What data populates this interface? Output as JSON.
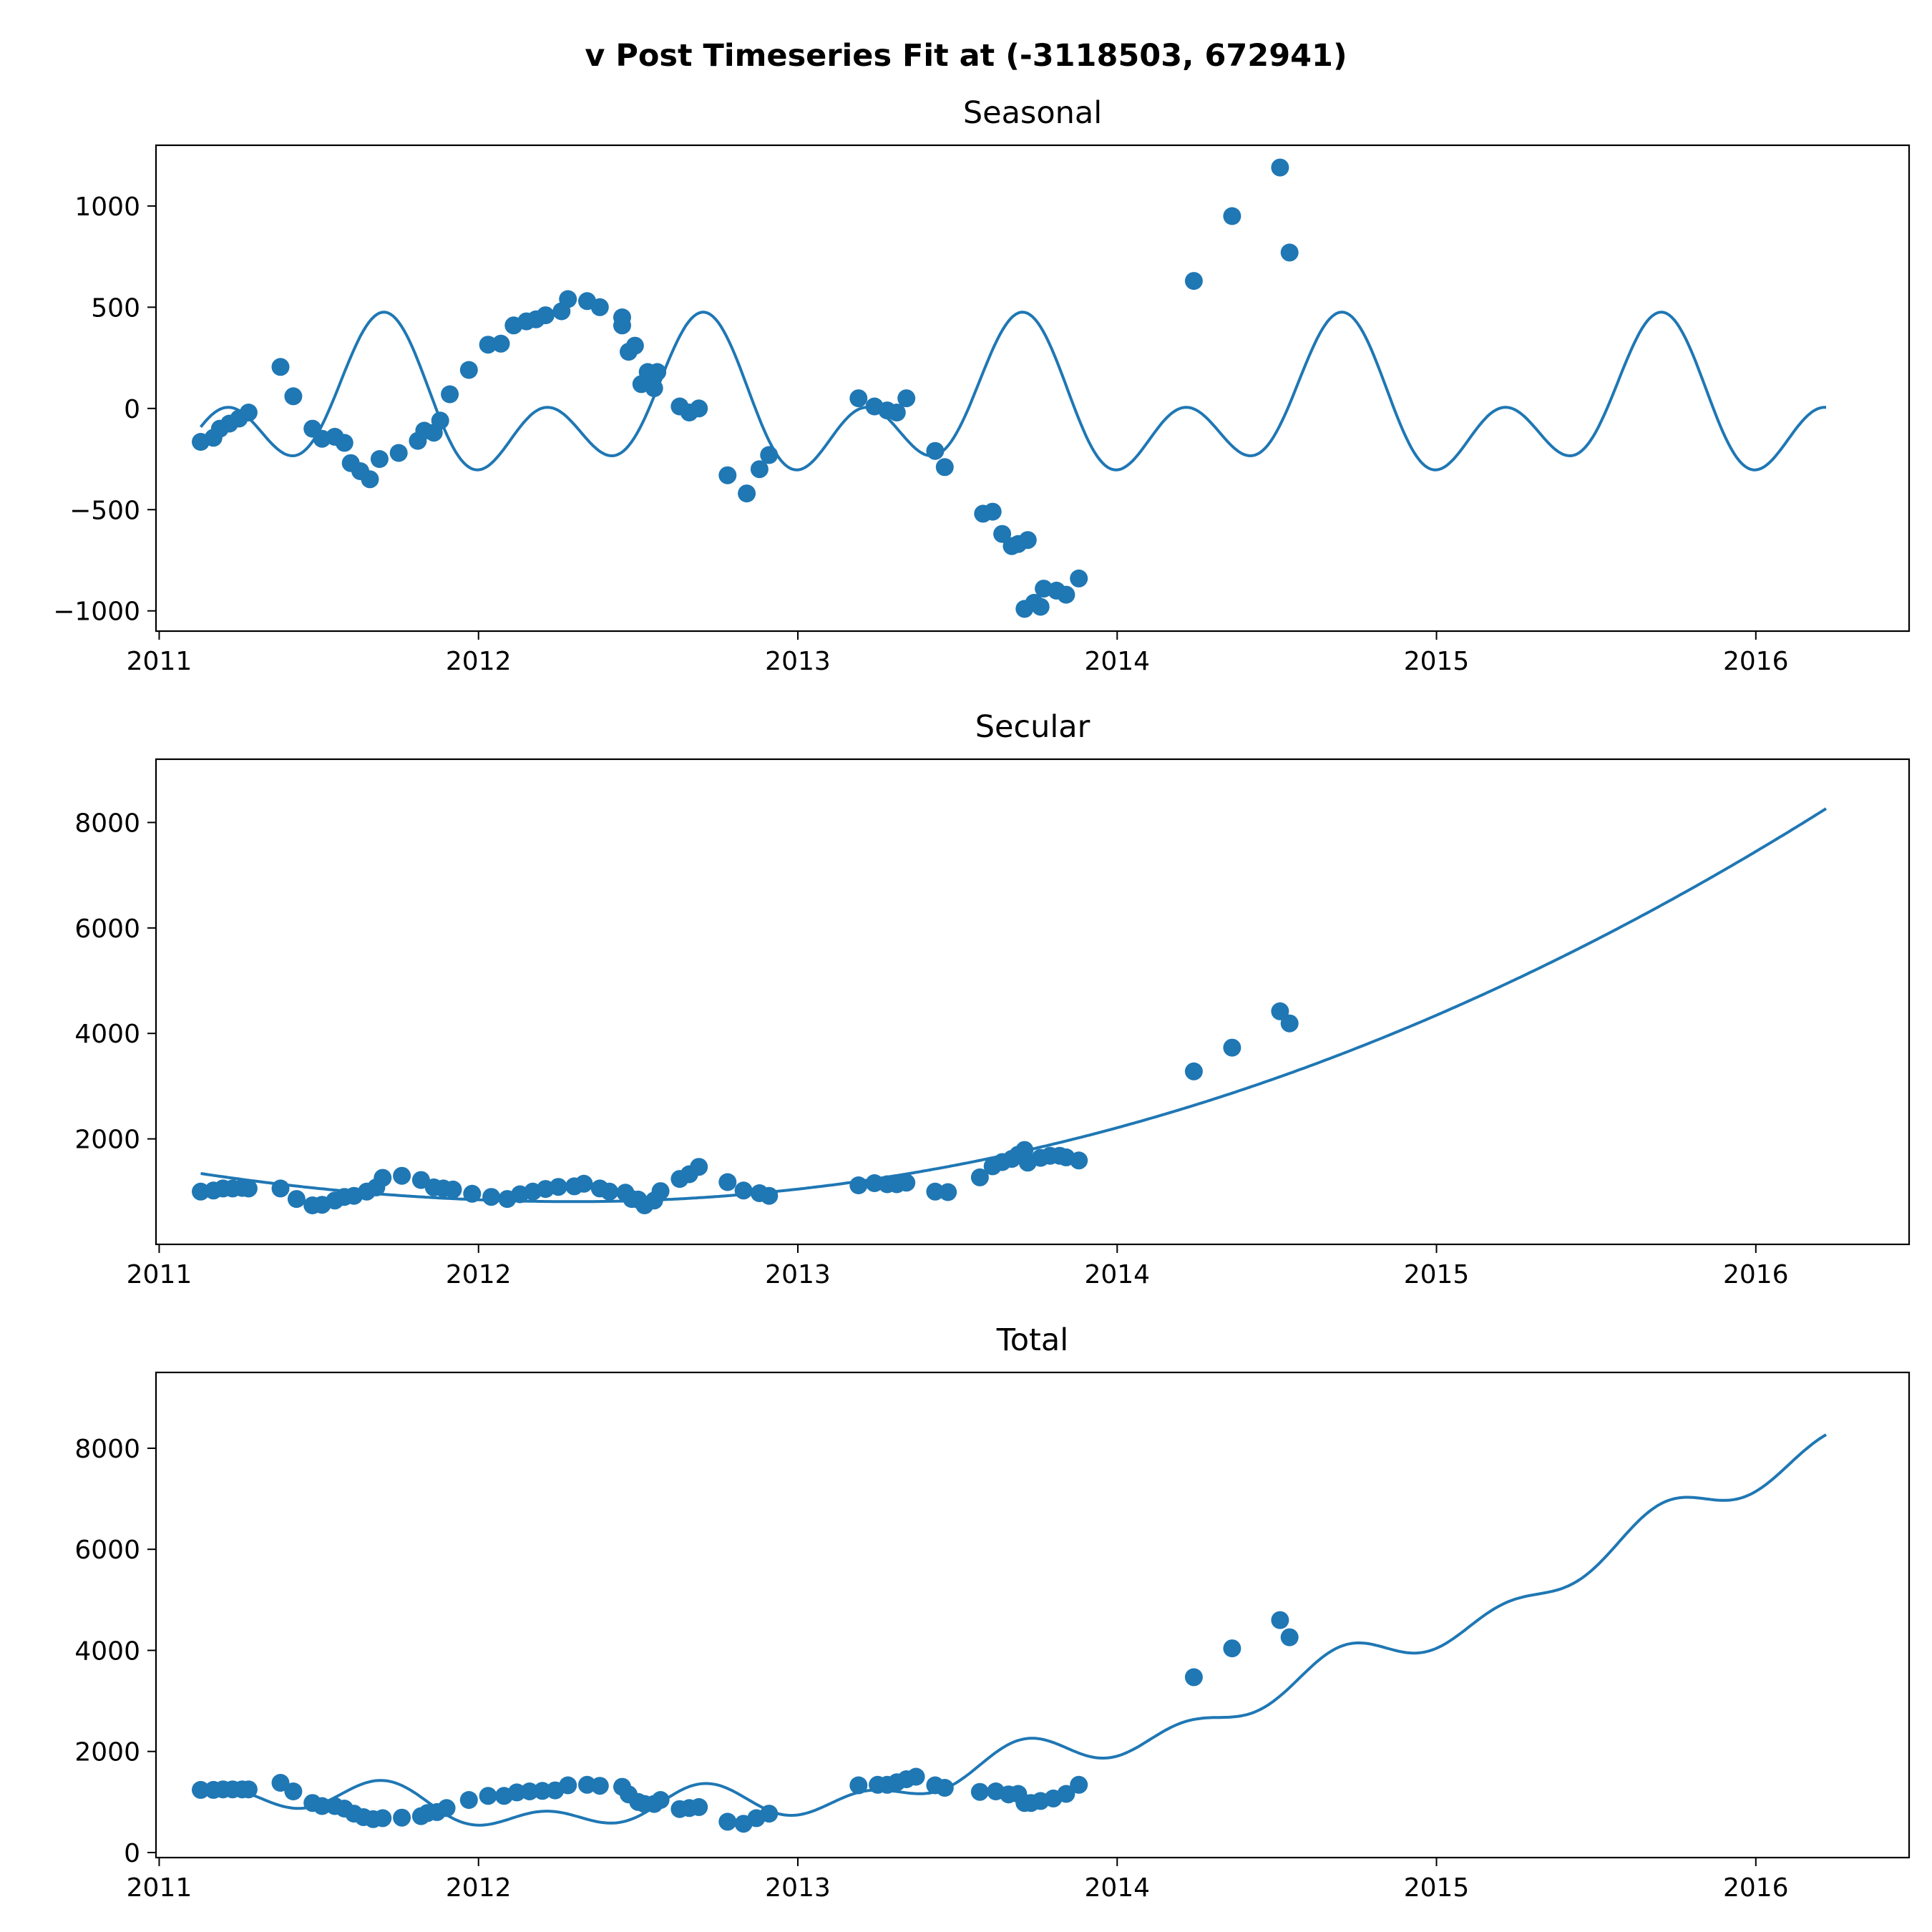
{
  "chart_data": {
    "suptitle": "v Post Timeseries Fit at (-3118503, 672941)",
    "type": "line",
    "colors": {
      "series": "#1f77b4",
      "axes": "#000000",
      "background": "#ffffff"
    },
    "xlim_years": [
      2010.99,
      2016.48
    ],
    "x_ticks": [
      2011,
      2012,
      2013,
      2014,
      2015,
      2016
    ],
    "x_tick_labels": [
      "2011",
      "2012",
      "2013",
      "2014",
      "2015",
      "2016"
    ],
    "fit_x_range_years": [
      2011.13,
      2016.22
    ],
    "panels": [
      {
        "id": "seasonal",
        "title": "Seasonal",
        "ylim": [
          -1100,
          1300
        ],
        "y_ticks": [
          -1000,
          -500,
          0,
          500,
          1000
        ],
        "y_tick_labels": [
          "−1000",
          "−500",
          "0",
          "500",
          "1000"
        ],
        "fit_model": "seasonal",
        "points": [
          [
            2011.13,
            -165
          ],
          [
            2011.17,
            -145
          ],
          [
            2011.19,
            -100
          ],
          [
            2011.22,
            -75
          ],
          [
            2011.25,
            -50
          ],
          [
            2011.28,
            -20
          ],
          [
            2011.38,
            205
          ],
          [
            2011.42,
            60
          ],
          [
            2011.48,
            -100
          ],
          [
            2011.51,
            -150
          ],
          [
            2011.55,
            -140
          ],
          [
            2011.58,
            -170
          ],
          [
            2011.6,
            -270
          ],
          [
            2011.63,
            -310
          ],
          [
            2011.66,
            -350
          ],
          [
            2011.69,
            -250
          ],
          [
            2011.75,
            -220
          ],
          [
            2011.81,
            -160
          ],
          [
            2011.83,
            -110
          ],
          [
            2011.86,
            -120
          ],
          [
            2011.88,
            -60
          ],
          [
            2011.91,
            70
          ],
          [
            2011.97,
            190
          ],
          [
            2012.03,
            315
          ],
          [
            2012.07,
            320
          ],
          [
            2012.11,
            410
          ],
          [
            2012.15,
            430
          ],
          [
            2012.18,
            440
          ],
          [
            2012.21,
            460
          ],
          [
            2012.26,
            480
          ],
          [
            2012.28,
            540
          ],
          [
            2012.34,
            530
          ],
          [
            2012.38,
            500
          ],
          [
            2012.45,
            450
          ],
          [
            2012.45,
            410
          ],
          [
            2012.47,
            280
          ],
          [
            2012.49,
            310
          ],
          [
            2012.51,
            120
          ],
          [
            2012.53,
            180
          ],
          [
            2012.55,
            100
          ],
          [
            2012.56,
            180
          ],
          [
            2012.63,
            10
          ],
          [
            2012.66,
            -20
          ],
          [
            2012.69,
            0
          ],
          [
            2012.78,
            -330
          ],
          [
            2012.84,
            -420
          ],
          [
            2012.88,
            -300
          ],
          [
            2012.91,
            -230
          ],
          [
            2013.19,
            50
          ],
          [
            2013.24,
            10
          ],
          [
            2013.28,
            -10
          ],
          [
            2013.31,
            -20
          ],
          [
            2013.34,
            50
          ],
          [
            2013.43,
            -210
          ],
          [
            2013.46,
            -290
          ],
          [
            2013.58,
            -520
          ],
          [
            2013.61,
            -510
          ],
          [
            2013.64,
            -620
          ],
          [
            2013.67,
            -680
          ],
          [
            2013.69,
            -670
          ],
          [
            2013.72,
            -650
          ],
          [
            2013.71,
            -990
          ],
          [
            2013.74,
            -960
          ],
          [
            2013.76,
            -980
          ],
          [
            2013.77,
            -890
          ],
          [
            2013.81,
            -900
          ],
          [
            2013.84,
            -920
          ],
          [
            2013.88,
            -840
          ],
          [
            2014.24,
            630
          ],
          [
            2014.36,
            950
          ],
          [
            2014.51,
            1190
          ],
          [
            2014.54,
            770
          ]
        ]
      },
      {
        "id": "secular",
        "title": "Secular",
        "ylim": [
          0,
          9200
        ],
        "y_ticks": [
          2000,
          4000,
          6000,
          8000
        ],
        "y_tick_labels": [
          "2000",
          "4000",
          "6000",
          "8000"
        ],
        "fit_model": "secular",
        "points": [
          [
            2011.13,
            1000
          ],
          [
            2011.17,
            1020
          ],
          [
            2011.2,
            1060
          ],
          [
            2011.23,
            1060
          ],
          [
            2011.26,
            1070
          ],
          [
            2011.28,
            1060
          ],
          [
            2011.38,
            1060
          ],
          [
            2011.43,
            860
          ],
          [
            2011.48,
            740
          ],
          [
            2011.51,
            750
          ],
          [
            2011.55,
            830
          ],
          [
            2011.58,
            900
          ],
          [
            2011.61,
            920
          ],
          [
            2011.65,
            1000
          ],
          [
            2011.68,
            1080
          ],
          [
            2011.7,
            1260
          ],
          [
            2011.76,
            1300
          ],
          [
            2011.82,
            1220
          ],
          [
            2011.86,
            1080
          ],
          [
            2011.89,
            1060
          ],
          [
            2011.92,
            1040
          ],
          [
            2011.98,
            960
          ],
          [
            2012.04,
            900
          ],
          [
            2012.09,
            860
          ],
          [
            2012.13,
            950
          ],
          [
            2012.17,
            1000
          ],
          [
            2012.21,
            1050
          ],
          [
            2012.25,
            1090
          ],
          [
            2012.3,
            1100
          ],
          [
            2012.33,
            1150
          ],
          [
            2012.38,
            1060
          ],
          [
            2012.41,
            1000
          ],
          [
            2012.46,
            980
          ],
          [
            2012.48,
            860
          ],
          [
            2012.5,
            850
          ],
          [
            2012.52,
            740
          ],
          [
            2012.55,
            830
          ],
          [
            2012.57,
            1010
          ],
          [
            2012.63,
            1240
          ],
          [
            2012.66,
            1330
          ],
          [
            2012.69,
            1470
          ],
          [
            2012.78,
            1180
          ],
          [
            2012.83,
            1020
          ],
          [
            2012.88,
            970
          ],
          [
            2012.91,
            920
          ],
          [
            2013.19,
            1120
          ],
          [
            2013.24,
            1160
          ],
          [
            2013.28,
            1140
          ],
          [
            2013.31,
            1140
          ],
          [
            2013.34,
            1170
          ],
          [
            2013.43,
            1000
          ],
          [
            2013.47,
            990
          ],
          [
            2013.57,
            1270
          ],
          [
            2013.61,
            1480
          ],
          [
            2013.64,
            1560
          ],
          [
            2013.67,
            1620
          ],
          [
            2013.69,
            1700
          ],
          [
            2013.71,
            1790
          ],
          [
            2013.72,
            1550
          ],
          [
            2013.76,
            1640
          ],
          [
            2013.79,
            1680
          ],
          [
            2013.82,
            1680
          ],
          [
            2013.84,
            1650
          ],
          [
            2013.88,
            1590
          ],
          [
            2014.24,
            3280
          ],
          [
            2014.36,
            3730
          ],
          [
            2014.51,
            4420
          ],
          [
            2014.54,
            4190
          ]
        ]
      },
      {
        "id": "total",
        "title": "Total",
        "ylim": [
          -100,
          9500
        ],
        "y_ticks": [
          0,
          2000,
          4000,
          6000,
          8000
        ],
        "y_tick_labels": [
          "0",
          "2000",
          "4000",
          "6000",
          "8000"
        ],
        "fit_model": "total",
        "points": [
          [
            2011.13,
            1240
          ],
          [
            2011.17,
            1240
          ],
          [
            2011.2,
            1250
          ],
          [
            2011.23,
            1250
          ],
          [
            2011.26,
            1250
          ],
          [
            2011.28,
            1250
          ],
          [
            2011.38,
            1380
          ],
          [
            2011.42,
            1210
          ],
          [
            2011.48,
            980
          ],
          [
            2011.51,
            920
          ],
          [
            2011.55,
            920
          ],
          [
            2011.58,
            870
          ],
          [
            2011.61,
            770
          ],
          [
            2011.64,
            700
          ],
          [
            2011.67,
            660
          ],
          [
            2011.7,
            680
          ],
          [
            2011.76,
            690
          ],
          [
            2011.82,
            720
          ],
          [
            2011.84,
            780
          ],
          [
            2011.87,
            800
          ],
          [
            2011.9,
            880
          ],
          [
            2011.97,
            1040
          ],
          [
            2012.03,
            1120
          ],
          [
            2012.08,
            1120
          ],
          [
            2012.12,
            1190
          ],
          [
            2012.16,
            1210
          ],
          [
            2012.2,
            1220
          ],
          [
            2012.24,
            1230
          ],
          [
            2012.28,
            1330
          ],
          [
            2012.34,
            1340
          ],
          [
            2012.38,
            1320
          ],
          [
            2012.45,
            1300
          ],
          [
            2012.47,
            1150
          ],
          [
            2012.5,
            1000
          ],
          [
            2012.52,
            960
          ],
          [
            2012.55,
            960
          ],
          [
            2012.57,
            1040
          ],
          [
            2012.63,
            860
          ],
          [
            2012.66,
            880
          ],
          [
            2012.69,
            900
          ],
          [
            2012.78,
            610
          ],
          [
            2012.83,
            570
          ],
          [
            2012.87,
            680
          ],
          [
            2012.91,
            770
          ],
          [
            2013.19,
            1330
          ],
          [
            2013.25,
            1340
          ],
          [
            2013.28,
            1340
          ],
          [
            2013.31,
            1390
          ],
          [
            2013.34,
            1450
          ],
          [
            2013.37,
            1500
          ],
          [
            2013.43,
            1330
          ],
          [
            2013.46,
            1280
          ],
          [
            2013.57,
            1200
          ],
          [
            2013.62,
            1210
          ],
          [
            2013.66,
            1150
          ],
          [
            2013.69,
            1160
          ],
          [
            2013.71,
            980
          ],
          [
            2013.73,
            980
          ],
          [
            2013.76,
            1020
          ],
          [
            2013.8,
            1070
          ],
          [
            2013.84,
            1160
          ],
          [
            2013.88,
            1340
          ],
          [
            2014.24,
            3470
          ],
          [
            2014.36,
            4040
          ],
          [
            2014.51,
            4600
          ],
          [
            2014.54,
            4260
          ]
        ]
      }
    ]
  }
}
